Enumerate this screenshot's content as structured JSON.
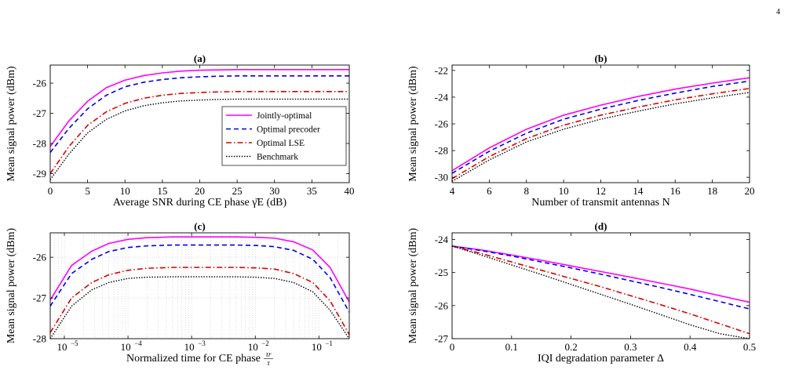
{
  "page_number": "4",
  "series_styles": [
    {
      "color": "#ff00ff",
      "dash": "",
      "width": 1.6
    },
    {
      "color": "#0000e6",
      "dash": "6,4",
      "width": 1.6
    },
    {
      "color": "#dd0000",
      "dash": "7,3,1.5,3",
      "width": 1.6
    },
    {
      "color": "#000000",
      "dash": "1.5,1.8",
      "width": 1.4
    }
  ],
  "chart_data": [
    {
      "id": "a",
      "type": "line",
      "title": "(a)",
      "xlabel": "Average SNR during CE phase γ̄E (dB)",
      "ylabel": "Mean signal power (dBm)",
      "xlim": [
        0,
        40
      ],
      "ylim": [
        -29.3,
        -25.4
      ],
      "xticks": [
        0,
        5,
        10,
        15,
        20,
        25,
        30,
        35,
        40
      ],
      "xtick_labels": [
        "0",
        "5",
        "10",
        "15",
        "20",
        "25",
        "30",
        "35",
        "40"
      ],
      "yticks": [
        -29,
        -28,
        -27,
        -26
      ],
      "ytick_labels": [
        "-29",
        "-28",
        "-27",
        "-26"
      ],
      "grid": false,
      "legend_position": "lower-right",
      "x": [
        0,
        2.5,
        5,
        7.5,
        10,
        12.5,
        15,
        17.5,
        20,
        22.5,
        25,
        27.5,
        30,
        32.5,
        35,
        37.5,
        40
      ],
      "series": [
        {
          "name": "Jointly-optimal",
          "values": [
            -28.1,
            -27.25,
            -26.6,
            -26.15,
            -25.9,
            -25.75,
            -25.66,
            -25.6,
            -25.57,
            -25.56,
            -25.55,
            -25.55,
            -25.55,
            -25.55,
            -25.55,
            -25.55,
            -25.55
          ]
        },
        {
          "name": "Optimal precoder",
          "values": [
            -28.3,
            -27.5,
            -26.85,
            -26.4,
            -26.12,
            -25.97,
            -25.88,
            -25.82,
            -25.79,
            -25.77,
            -25.76,
            -25.76,
            -25.76,
            -25.76,
            -25.76,
            -25.76,
            -25.76
          ]
        },
        {
          "name": "Optimal LSE",
          "values": [
            -29.0,
            -28.1,
            -27.4,
            -26.95,
            -26.67,
            -26.5,
            -26.4,
            -26.34,
            -26.31,
            -26.29,
            -26.28,
            -26.28,
            -26.28,
            -26.28,
            -26.28,
            -26.28,
            -26.28
          ]
        },
        {
          "name": "Benchmark",
          "values": [
            -29.2,
            -28.35,
            -27.65,
            -27.2,
            -26.92,
            -26.75,
            -26.65,
            -26.59,
            -26.56,
            -26.54,
            -26.53,
            -26.53,
            -26.53,
            -26.53,
            -26.53,
            -26.53,
            -26.53
          ]
        }
      ]
    },
    {
      "id": "b",
      "type": "line",
      "title": "(b)",
      "xlabel": "Number of transmit antennas N",
      "ylabel": "Mean signal power (dBm)",
      "xlim": [
        4,
        20
      ],
      "ylim": [
        -30.4,
        -21.6
      ],
      "xticks": [
        4,
        6,
        8,
        10,
        12,
        14,
        16,
        18,
        20
      ],
      "xtick_labels": [
        "4",
        "6",
        "8",
        "10",
        "12",
        "14",
        "16",
        "18",
        "20"
      ],
      "yticks": [
        -30,
        -28,
        -26,
        -24,
        -22
      ],
      "ytick_labels": [
        "-30",
        "-28",
        "-26",
        "-24",
        "-22"
      ],
      "grid": false,
      "x": [
        4,
        6,
        8,
        10,
        12,
        14,
        16,
        18,
        20
      ],
      "series": [
        {
          "name": "Jointly-optimal",
          "values": [
            -29.5,
            -27.8,
            -26.4,
            -25.35,
            -24.6,
            -23.95,
            -23.4,
            -22.95,
            -22.55
          ]
        },
        {
          "name": "Optimal precoder",
          "values": [
            -29.7,
            -28.05,
            -26.7,
            -25.65,
            -24.9,
            -24.25,
            -23.7,
            -23.2,
            -22.8
          ]
        },
        {
          "name": "Optimal LSE",
          "values": [
            -30.1,
            -28.45,
            -27.1,
            -26.1,
            -25.35,
            -24.75,
            -24.2,
            -23.75,
            -23.35
          ]
        },
        {
          "name": "Benchmark",
          "values": [
            -30.3,
            -28.7,
            -27.35,
            -26.4,
            -25.65,
            -25.05,
            -24.5,
            -24.05,
            -23.65
          ]
        }
      ]
    },
    {
      "id": "c",
      "type": "line",
      "title": "(c)",
      "xlabel": "Normalized time for CE phase",
      "xlabel_fraction": {
        "numerator": "τr",
        "denominator": "τ"
      },
      "ylabel": "Mean signal power (dBm)",
      "xscale": "log",
      "xlim": [
        6e-06,
        0.3
      ],
      "ylim": [
        -28,
        -25.4
      ],
      "xticks": [
        1e-05,
        0.0001,
        0.001,
        0.01,
        0.1
      ],
      "xtick_labels": [
        "10",
        "10",
        "10",
        "10",
        "10"
      ],
      "xtick_exponents": [
        "−5",
        "−4",
        "−3",
        "−2",
        "−1"
      ],
      "yticks": [
        -28,
        -27,
        -26
      ],
      "ytick_labels": [
        "-28",
        "-27",
        "-26"
      ],
      "grid": true,
      "x": [
        6e-06,
        1.3e-05,
        2.7e-05,
        5e-05,
        0.0001,
        0.0002,
        0.0005,
        0.001,
        0.002,
        0.005,
        0.01,
        0.02,
        0.04,
        0.08,
        0.15,
        0.3
      ],
      "series": [
        {
          "name": "Jointly-optimal",
          "values": [
            -27.05,
            -26.2,
            -25.85,
            -25.66,
            -25.56,
            -25.52,
            -25.5,
            -25.5,
            -25.5,
            -25.5,
            -25.51,
            -25.53,
            -25.62,
            -25.82,
            -26.25,
            -27.1
          ]
        },
        {
          "name": "Optimal precoder",
          "values": [
            -27.2,
            -26.4,
            -26.05,
            -25.86,
            -25.76,
            -25.72,
            -25.7,
            -25.7,
            -25.7,
            -25.7,
            -25.71,
            -25.74,
            -25.83,
            -26.05,
            -26.5,
            -27.35
          ]
        },
        {
          "name": "Optimal LSE",
          "values": [
            -27.85,
            -27.0,
            -26.62,
            -26.43,
            -26.32,
            -26.27,
            -26.25,
            -26.25,
            -26.25,
            -26.25,
            -26.26,
            -26.29,
            -26.4,
            -26.62,
            -27.07,
            -27.9
          ]
        },
        {
          "name": "Benchmark",
          "values": [
            -28.0,
            -27.2,
            -26.8,
            -26.62,
            -26.52,
            -26.49,
            -26.48,
            -26.48,
            -26.48,
            -26.48,
            -26.49,
            -26.52,
            -26.62,
            -26.85,
            -27.3,
            -28.0
          ]
        }
      ]
    },
    {
      "id": "d",
      "type": "line",
      "title": "(d)",
      "xlabel": "IQI degradation parameter Δ",
      "ylabel": "Mean signal power (dBm)",
      "xlim": [
        0,
        0.5
      ],
      "ylim": [
        -27,
        -23.8
      ],
      "xticks": [
        0,
        0.1,
        0.2,
        0.3,
        0.4,
        0.5
      ],
      "xtick_labels": [
        "0",
        "0.1",
        "0.2",
        "0.3",
        "0.4",
        "0.5"
      ],
      "yticks": [
        -27,
        -26,
        -25,
        -24
      ],
      "ytick_labels": [
        "-27",
        "-26",
        "-25",
        "-24"
      ],
      "grid": false,
      "x": [
        0,
        0.05,
        0.1,
        0.15,
        0.2,
        0.25,
        0.3,
        0.35,
        0.4,
        0.45,
        0.5
      ],
      "series": [
        {
          "name": "Jointly-optimal",
          "values": [
            -24.2,
            -24.32,
            -24.47,
            -24.63,
            -24.8,
            -24.97,
            -25.14,
            -25.32,
            -25.5,
            -25.7,
            -25.9
          ]
        },
        {
          "name": "Optimal precoder",
          "values": [
            -24.2,
            -24.34,
            -24.5,
            -24.68,
            -24.86,
            -25.05,
            -25.25,
            -25.45,
            -25.66,
            -25.88,
            -26.1
          ]
        },
        {
          "name": "Optimal LSE",
          "values": [
            -24.2,
            -24.43,
            -24.68,
            -24.93,
            -25.18,
            -25.43,
            -25.7,
            -25.97,
            -26.25,
            -26.55,
            -26.85
          ]
        },
        {
          "name": "Benchmark",
          "values": [
            -24.2,
            -24.48,
            -24.77,
            -25.06,
            -25.36,
            -25.66,
            -25.96,
            -26.27,
            -26.58,
            -26.85,
            -27.0
          ]
        }
      ]
    }
  ]
}
